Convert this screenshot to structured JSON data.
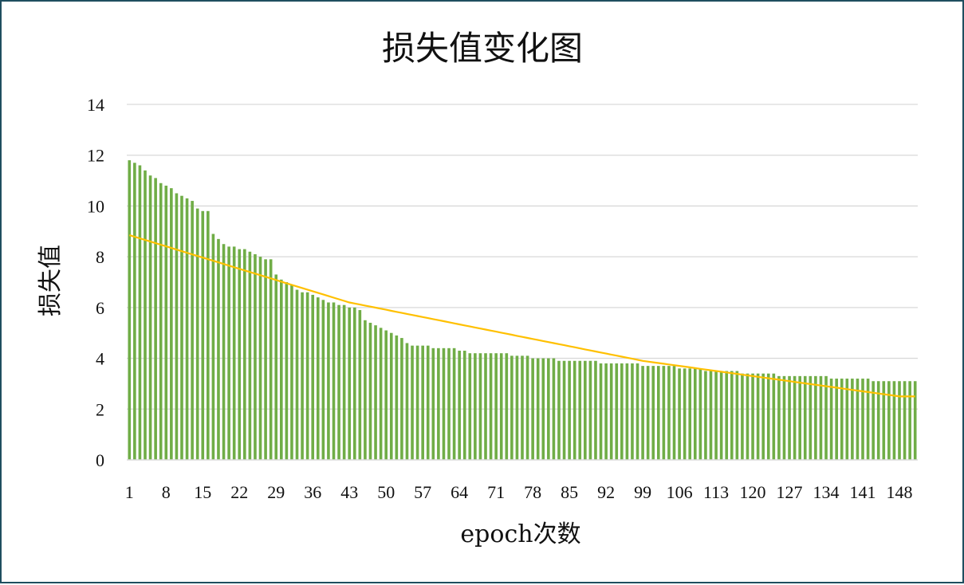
{
  "chart_data": {
    "type": "bar",
    "title": "损失值变化图",
    "xlabel": "epoch次数",
    "ylabel": "损失值",
    "ylim": [
      0,
      14
    ],
    "yticks": [
      0,
      2,
      4,
      6,
      8,
      10,
      12,
      14
    ],
    "xtick_labels": [
      "1",
      "8",
      "15",
      "22",
      "29",
      "36",
      "43",
      "50",
      "57",
      "64",
      "71",
      "78",
      "85",
      "92",
      "99",
      "106",
      "113",
      "120",
      "127",
      "134",
      "141",
      "148"
    ],
    "grid": true,
    "colors": {
      "bars": "#70ad47",
      "trendline": "#ffc000",
      "grid": "#d9d9d9",
      "border": "#1f4e5f"
    },
    "series": [
      {
        "values": [
          11.8,
          11.7,
          11.6,
          11.4,
          11.2,
          11.1,
          10.9,
          10.8,
          10.7,
          10.5,
          10.4,
          10.3,
          10.2,
          9.9,
          9.8,
          9.8,
          8.9,
          8.7,
          8.5,
          8.4,
          8.4,
          8.3,
          8.3,
          8.2,
          8.1,
          8.0,
          7.9,
          7.9,
          7.3,
          7.1,
          7.0,
          6.9,
          6.7,
          6.6,
          6.6,
          6.5,
          6.4,
          6.3,
          6.2,
          6.2,
          6.1,
          6.1,
          6.0,
          6.0,
          5.9,
          5.5,
          5.4,
          5.3,
          5.2,
          5.1,
          5.0,
          4.9,
          4.8,
          4.6,
          4.5,
          4.5,
          4.5,
          4.5,
          4.4,
          4.4,
          4.4,
          4.4,
          4.4,
          4.3,
          4.3,
          4.2,
          4.2,
          4.2,
          4.2,
          4.2,
          4.2,
          4.2,
          4.2,
          4.1,
          4.1,
          4.1,
          4.1,
          4.0,
          4.0,
          4.0,
          4.0,
          4.0,
          3.9,
          3.9,
          3.9,
          3.9,
          3.9,
          3.9,
          3.9,
          3.9,
          3.8,
          3.8,
          3.8,
          3.8,
          3.8,
          3.8,
          3.8,
          3.8,
          3.7,
          3.7,
          3.7,
          3.7,
          3.7,
          3.7,
          3.7,
          3.6,
          3.6,
          3.6,
          3.6,
          3.6,
          3.5,
          3.5,
          3.5,
          3.5,
          3.5,
          3.5,
          3.5,
          3.4,
          3.4,
          3.4,
          3.4,
          3.4,
          3.4,
          3.4,
          3.3,
          3.3,
          3.3,
          3.3,
          3.3,
          3.3,
          3.3,
          3.3,
          3.3,
          3.3,
          3.2,
          3.2,
          3.2,
          3.2,
          3.2,
          3.2,
          3.2,
          3.2,
          3.1,
          3.1,
          3.1,
          3.1,
          3.1,
          3.1,
          3.1,
          3.1,
          3.1
        ]
      },
      {
        "type": "trendline",
        "values_at": {
          "1": 8.85,
          "43": 6.2,
          "99": 3.9,
          "148": 2.5
        }
      }
    ]
  }
}
